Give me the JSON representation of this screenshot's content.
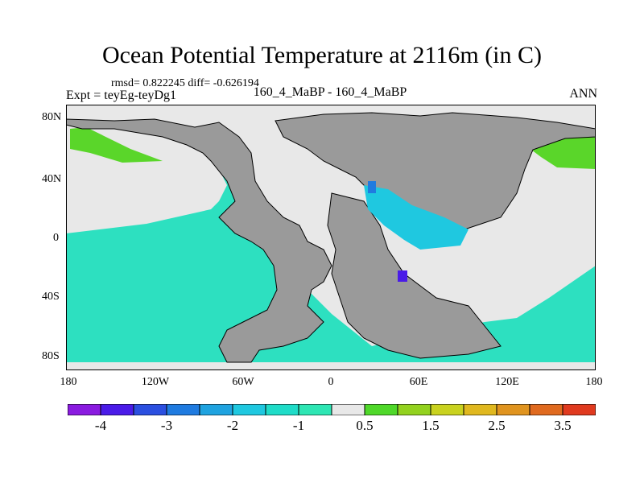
{
  "header": {
    "title": "Ocean Potential Temperature at 2116m (in C)",
    "stats": "rmsd= 0.822245 diff= -0.626194",
    "experiment": "Expt = teyEg-teyDg1",
    "case": "160_4_MaBP - 160_4_MaBP",
    "season": "ANN"
  },
  "axes": {
    "y_labels": [
      "80N",
      "40N",
      "0",
      "40S",
      "80S"
    ],
    "x_labels": [
      "180",
      "120W",
      "60W",
      "0",
      "60E",
      "120E",
      "180"
    ]
  },
  "colorbar": {
    "labels": [
      "-4",
      "-3",
      "-2",
      "-1",
      "0.5",
      "1.5",
      "2.5",
      "3.5"
    ],
    "colors": [
      "#8a1be0",
      "#4a1be8",
      "#2b4fe0",
      "#1f7be0",
      "#1fa3e0",
      "#1fc8e0",
      "#1fdcc8",
      "#2ee6b4",
      "#e8e8e8",
      "#4fd82a",
      "#93d21f",
      "#c9d21f",
      "#e0b81f",
      "#e0941f",
      "#e06a1f",
      "#e03a1f"
    ]
  },
  "map_colors": {
    "land": "#9a9a9a",
    "ocean_cool": "#2de0c0",
    "neutral": "#e8e8e8",
    "warm": "#5ad62a",
    "cyan": "#1fc8e0",
    "blue": "#1f7be0",
    "violet": "#4a1be8"
  }
}
